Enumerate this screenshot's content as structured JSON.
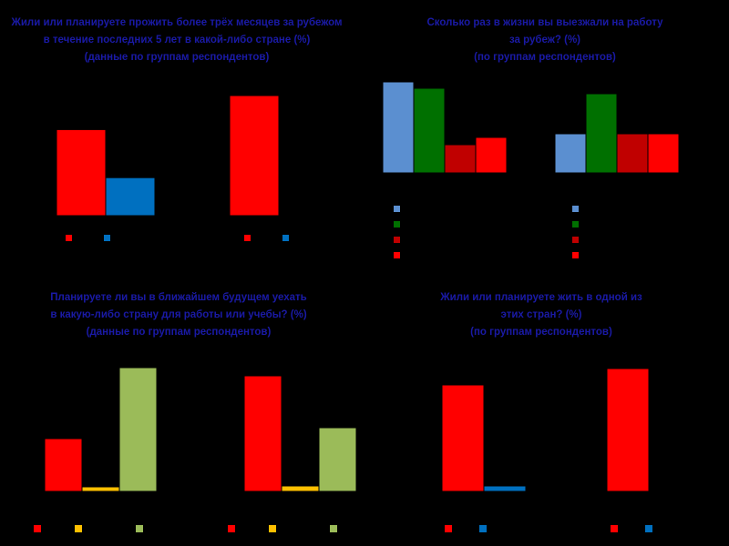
{
  "chart_data": [
    {
      "type": "bar",
      "panel": "top-left",
      "title_lines": [
        "Жили или планируете прожить более трёх месяцев за рубежом",
        "в течение последних 5 лет в какой-либо стране (%)",
        "(данные по группам респондентов)"
      ],
      "colors": [
        "#ff0000",
        "#0070c0"
      ],
      "groups": [
        {
          "series_values": [
            86,
            38
          ]
        },
        {
          "series_values": [
            120,
            0
          ]
        }
      ],
      "ylim": [
        0,
        125
      ],
      "legend_position": "below"
    },
    {
      "type": "bar",
      "panel": "top-right",
      "title_lines": [
        "Сколько раз в жизни вы выезжали на работу",
        "за рубеж? (%)",
        "(по группам респондентов)"
      ],
      "colors": [
        "#5b8fd0",
        "#007000",
        "#c00000",
        "#ff0000"
      ],
      "groups": [
        {
          "series_values": [
            100,
            93,
            31,
            39
          ]
        },
        {
          "series_values": [
            43,
            87,
            43,
            43
          ]
        }
      ],
      "ylim": [
        0,
        110
      ],
      "legend_position": "below"
    },
    {
      "type": "bar",
      "panel": "bottom-left",
      "title_lines": [
        "Планируете ли вы в ближайшем будущем уехать",
        "в какую-либо страну для работы или учебы? (%)",
        "(данные по группам респондентов)"
      ],
      "colors": [
        "#ff0000",
        "#ffc000",
        "#9bbb59"
      ],
      "groups": [
        {
          "series_values": [
            58,
            5,
            136
          ]
        },
        {
          "series_values": [
            127,
            6,
            70
          ]
        }
      ],
      "ylim": [
        0,
        140
      ],
      "legend_position": "below"
    },
    {
      "type": "bar",
      "panel": "bottom-right",
      "title_lines": [
        "Жили или планируете жить в одной из",
        "этих стран? (%)",
        "(по группам респондентов)"
      ],
      "colors": [
        "#ff0000",
        "#0070c0"
      ],
      "groups": [
        {
          "series_values": [
            117,
            6
          ]
        },
        {
          "series_values": [
            135,
            0
          ]
        }
      ],
      "ylim": [
        0,
        140
      ],
      "legend_position": "below"
    }
  ]
}
